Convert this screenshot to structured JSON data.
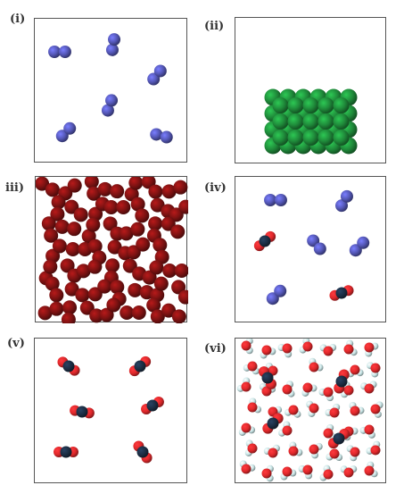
{
  "panels": [
    {
      "label": "(i)",
      "content": "diatomic molecules (blue)"
    },
    {
      "label": "(ii)",
      "content": "packed green spheres"
    },
    {
      "label": "iii)",
      "content": "dense dark red diatomic molecules"
    },
    {
      "label": "(iv)",
      "content": "blue diatomic molecules and CO2-like molecules"
    },
    {
      "label": "(v)",
      "content": "CO2-like molecules"
    },
    {
      "label": "(vi)",
      "content": "dense mixture of CO2-like and water-like molecules"
    }
  ],
  "colors": {
    "blue_atom": "#5457b6",
    "green_atom": "#1f8a3a",
    "darkred_atom": "#7e1212",
    "red_atom": "#e0282b",
    "carbon_atom": "#1c2e44",
    "h_atom": "#c8e5e6",
    "border": "#555555"
  }
}
